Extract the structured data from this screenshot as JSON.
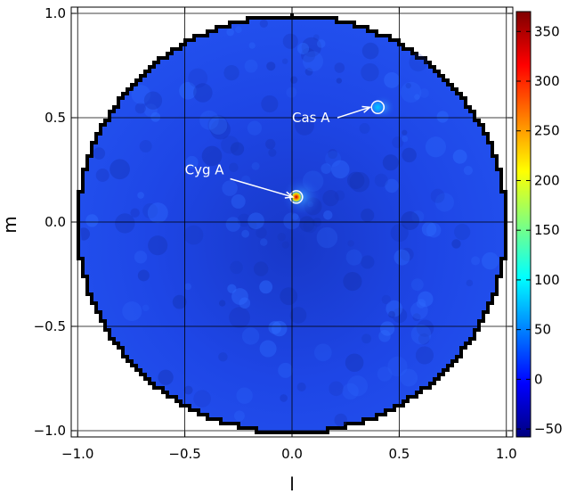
{
  "chart_data": {
    "type": "heatmap",
    "title": "",
    "xlabel": "l",
    "ylabel": "m",
    "xlim": [
      -1.03,
      1.03
    ],
    "ylim": [
      -1.03,
      1.03
    ],
    "x_ticks": [
      -1.0,
      -0.5,
      0.0,
      0.5,
      1.0
    ],
    "y_ticks": [
      -1.0,
      -0.5,
      0.0,
      0.5,
      1.0
    ],
    "x_tick_labels": [
      "−1.0",
      "−0.5",
      "0.0",
      "0.5",
      "1.0"
    ],
    "y_tick_labels": [
      "−1.0",
      "−0.5",
      "0.0",
      "0.5",
      "1.0"
    ],
    "grid": true,
    "field_of_view": "unit circle (sky visible for l² + m² ≤ 1), outside masked",
    "colormap": "jet",
    "colorbar": {
      "min": -58,
      "max": 370,
      "ticks": [
        -50,
        0,
        50,
        100,
        150,
        200,
        250,
        300,
        350
      ],
      "tick_labels": [
        "−50",
        "0",
        "50",
        "100",
        "150",
        "200",
        "250",
        "300",
        "350"
      ],
      "position": "right"
    },
    "background_level": 15,
    "sources": [
      {
        "name": "Cyg A",
        "l": 0.02,
        "m": 0.12,
        "peak": 370
      },
      {
        "name": "Cas A",
        "l": 0.4,
        "m": 0.55,
        "peak": 80
      }
    ],
    "annotations": [
      {
        "text": "Cyg A",
        "text_l": -0.5,
        "text_m": 0.25,
        "target_l": 0.02,
        "target_m": 0.12
      },
      {
        "text": "Cas A",
        "text_l": 0.0,
        "text_m": 0.5,
        "target_l": 0.38,
        "target_m": 0.55
      }
    ]
  },
  "colors": {
    "colorbar_stops": [
      "#00007f",
      "#0000ff",
      "#007fff",
      "#00ffff",
      "#7fff7f",
      "#ffff00",
      "#ff7f00",
      "#ff0000",
      "#7f0000"
    ],
    "sky_background": "#1e46e6",
    "mask_edge": "#000000",
    "grid": "#000000",
    "annotation": "#ffffff"
  }
}
